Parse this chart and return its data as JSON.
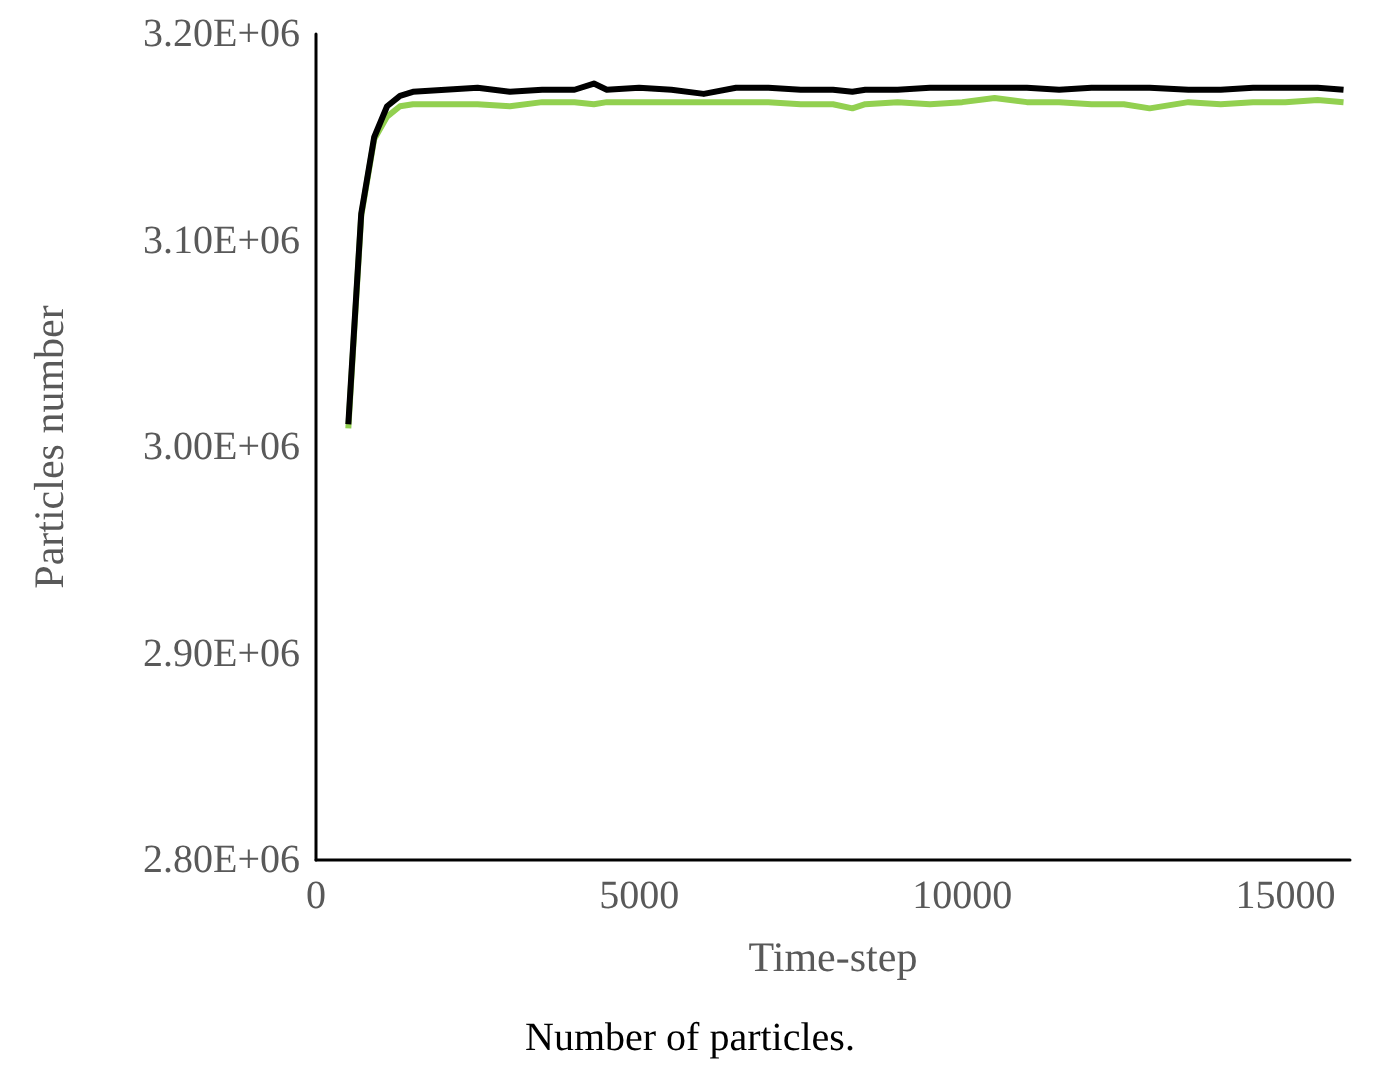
{
  "chart_data": {
    "type": "line",
    "xlabel": "Time-step",
    "ylabel": "Particles number",
    "annotations": [
      "Number of particles."
    ],
    "x": [
      500,
      700,
      900,
      1100,
      1300,
      1500,
      2000,
      2500,
      3000,
      3500,
      4000,
      4300,
      4500,
      5000,
      5500,
      6000,
      6500,
      7000,
      7500,
      8000,
      8300,
      8500,
      9000,
      9500,
      10000,
      10500,
      11000,
      11500,
      12000,
      12500,
      12900,
      13500,
      14000,
      14500,
      15000,
      15500,
      15900
    ],
    "series": [
      {
        "color": "#92d050",
        "values": [
          3009000,
          3112000,
          3149000,
          3160000,
          3165000,
          3166000,
          3166000,
          3166000,
          3165000,
          3167000,
          3167000,
          3166000,
          3167000,
          3167000,
          3167000,
          3167000,
          3167000,
          3167000,
          3166000,
          3166000,
          3164000,
          3166000,
          3167000,
          3166000,
          3167000,
          3169000,
          3167000,
          3167000,
          3166000,
          3166000,
          3164000,
          3167000,
          3166000,
          3167000,
          3167000,
          3168000,
          3167000
        ]
      },
      {
        "color": "#000000",
        "values": [
          3011000,
          3113000,
          3150000,
          3165000,
          3170000,
          3172000,
          3173000,
          3174000,
          3172000,
          3173000,
          3173000,
          3176000,
          3173000,
          3174000,
          3173000,
          3171000,
          3174000,
          3174000,
          3173000,
          3173000,
          3172000,
          3173000,
          3173000,
          3174000,
          3174000,
          3174000,
          3174000,
          3173000,
          3174000,
          3174000,
          3174000,
          3173000,
          3173000,
          3174000,
          3174000,
          3174000,
          3173000
        ]
      }
    ],
    "xlim": [
      0,
      16000
    ],
    "xticks": [
      0,
      5000,
      10000,
      15000
    ],
    "ylim": [
      2800000,
      3200000
    ],
    "yticks": [
      {
        "value": 2800000,
        "label": "2.80E+06"
      },
      {
        "value": 2900000,
        "label": "2.90E+06"
      },
      {
        "value": 3000000,
        "label": "3.00E+06"
      },
      {
        "value": 3100000,
        "label": "3.10E+06"
      },
      {
        "value": 3200000,
        "label": "3.20E+06"
      }
    ],
    "grid": false,
    "marker": "none",
    "line_style": "solid"
  }
}
